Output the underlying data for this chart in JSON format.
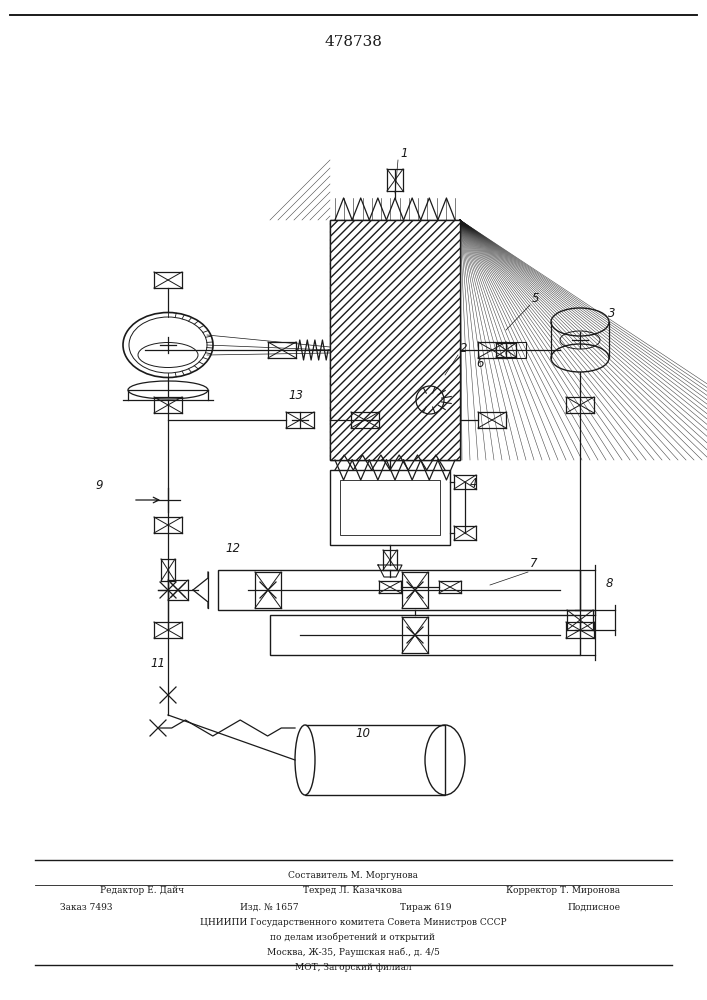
{
  "patent_number": "478738",
  "background_color": "#ffffff",
  "line_color": "#1a1a1a",
  "footer_texts": {
    "compiler": "Составитель М. Моргунова",
    "editor": "Редактор Е. Дайч",
    "techred": "Техред Л. Казачкова",
    "corrector": "Корректор Т. Миронова",
    "order": "Заказ 7493",
    "edition": "Изд. № 1657",
    "tirazh": "Тираж 619",
    "podpisnoe": "Подписное",
    "cniip": "ЦНИИПИ Государственного комитета Совета Министров СССР",
    "po_delam": "по делам изобретений и открытий",
    "moscow": "Москва, Ж-35, Раушская наб., д. 4/5",
    "mot": "МОТ, Загорский филиал"
  }
}
